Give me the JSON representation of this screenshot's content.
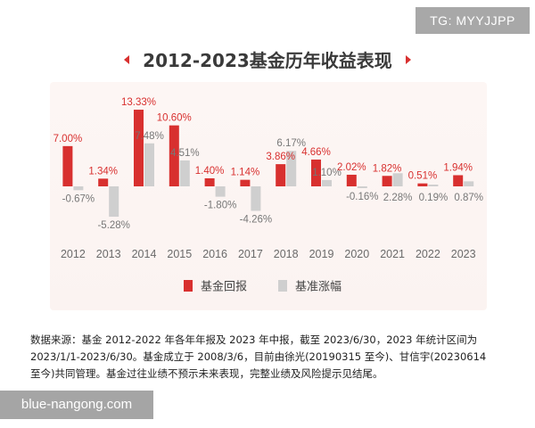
{
  "badge": "TG: MYYJJPP",
  "watermark": "blue-nangong.com",
  "footnote": [
    "数据来源：基金 2012-2022 年各年年报及 2023 年中报，截至 2023/6/30，2023 年统计区间为",
    "2023/1/1-2023/6/30。基金成立于 2008/3/6，目前由徐光(20190315 至今)、甘信宇(20230614",
    "至今)共同管理。基金过往业绩不预示未来表现，完整业绩及风险提示见结尾。"
  ],
  "colors": {
    "fund": "#d8302f",
    "benchmark": "#cfcfcf",
    "axis_text": "#6a6a6a",
    "title_accent": "#d8302f"
  },
  "chart_data": {
    "type": "bar",
    "title": "2012-2023基金历年收益表现",
    "categories": [
      "2012",
      "2013",
      "2014",
      "2015",
      "2016",
      "2017",
      "2018",
      "2019",
      "2020",
      "2021",
      "2022",
      "2023"
    ],
    "series": [
      {
        "name": "基金回报",
        "values": [
          7.0,
          1.34,
          13.33,
          10.6,
          1.4,
          1.14,
          3.86,
          4.66,
          2.02,
          1.82,
          0.51,
          1.94
        ],
        "labels": [
          "7.00%",
          "1.34%",
          "13.33%",
          "10.60%",
          "1.40%",
          "1.14%",
          "3.86%",
          "4.66%",
          "2.02%",
          "1.82%",
          "0.51%",
          "1.94%"
        ]
      },
      {
        "name": "基准涨幅",
        "values": [
          -0.67,
          -5.28,
          7.48,
          4.51,
          -1.8,
          -4.26,
          6.17,
          1.1,
          -0.16,
          2.28,
          0.19,
          0.87
        ],
        "labels": [
          "-0.67%",
          "-5.28%",
          "7.48%",
          "4.51%",
          "-1.80%",
          "-4.26%",
          "6.17%",
          "1.10%",
          "-0.16%",
          "2.28%",
          "0.19%",
          "0.87%"
        ]
      }
    ],
    "ylim": [
      -7,
      14
    ],
    "grid": false,
    "legend": "bottom-center"
  }
}
